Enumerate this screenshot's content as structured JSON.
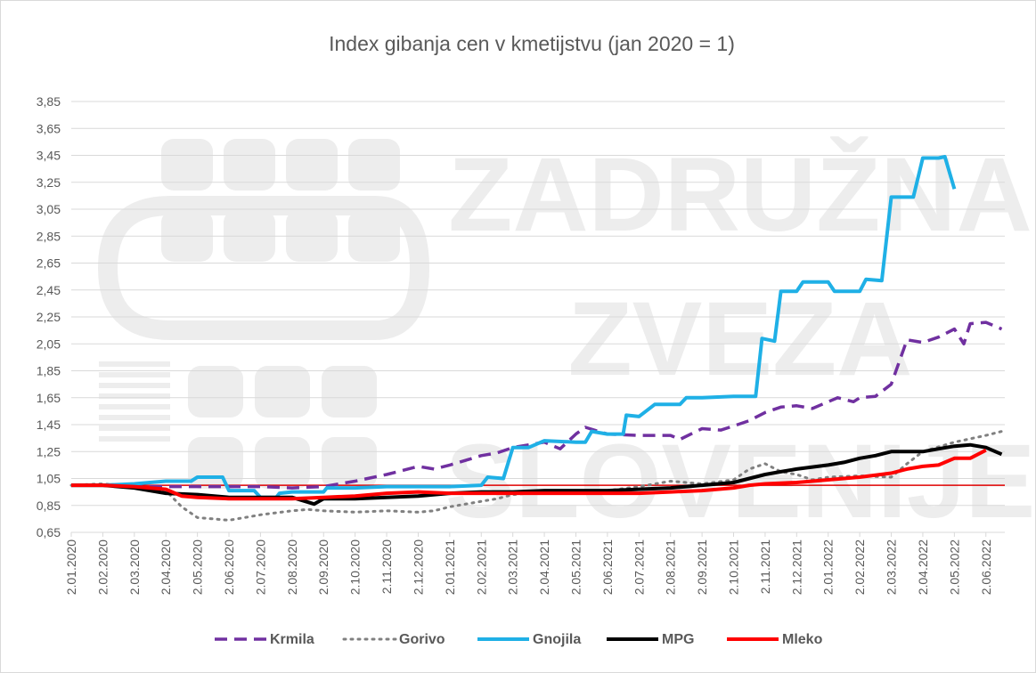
{
  "chart_data": {
    "type": "line",
    "title": "Index gibanja cen v kmetijstvu (jan 2020 = 1)",
    "xlabel": "",
    "ylabel": "",
    "ylim": [
      0.65,
      3.85
    ],
    "yticks": [
      "0,65",
      "0,85",
      "1,05",
      "1,25",
      "1,45",
      "1,65",
      "1,85",
      "2,05",
      "2,25",
      "2,45",
      "2,65",
      "2,85",
      "3,05",
      "3,25",
      "3,45",
      "3,65",
      "3,85"
    ],
    "ytick_values": [
      0.65,
      0.85,
      1.05,
      1.25,
      1.45,
      1.65,
      1.85,
      2.05,
      2.25,
      2.45,
      2.65,
      2.85,
      3.05,
      3.25,
      3.45,
      3.65,
      3.85
    ],
    "xticks": [
      "2.01.2020",
      "2.02.2020",
      "2.03.2020",
      "2.04.2020",
      "2.05.2020",
      "2.06.2020",
      "2.07.2020",
      "2.08.2020",
      "2.09.2020",
      "2.10.2020",
      "2.11.2020",
      "2.12.2020",
      "2.01.2021",
      "2.02.2021",
      "2.03.2021",
      "2.04.2021",
      "2.05.2021",
      "2.06.2021",
      "2.07.2021",
      "2.08.2021",
      "2.09.2021",
      "2.10.2021",
      "2.11.2021",
      "2.12.2021",
      "2.01.2022",
      "2.02.2022",
      "2.03.2022",
      "2.04.2022",
      "2.05.2022",
      "2.06.2022"
    ],
    "x_units": "months since 2.01.2020 (month 0 = 2.01.2020)",
    "x_range": [
      0,
      29.6
    ],
    "reference_line": {
      "y": 1.0,
      "color": "#e00000"
    },
    "grid": true,
    "legend_position": "bottom",
    "watermark": [
      "ZADRUŽNA",
      "ZVEZA",
      "SLOVENIJE"
    ],
    "series": [
      {
        "name": "Krmila",
        "color": "#7030a0",
        "style": "dashed",
        "points": [
          [
            0,
            1.0
          ],
          [
            1,
            1.0
          ],
          [
            2,
            0.99
          ],
          [
            3,
            0.99
          ],
          [
            4,
            0.99
          ],
          [
            5,
            0.99
          ],
          [
            6,
            0.99
          ],
          [
            7,
            0.98
          ],
          [
            8,
            0.99
          ],
          [
            9,
            1.03
          ],
          [
            10,
            1.08
          ],
          [
            11,
            1.14
          ],
          [
            11.5,
            1.12
          ],
          [
            12,
            1.15
          ],
          [
            13,
            1.22
          ],
          [
            13.5,
            1.24
          ],
          [
            14,
            1.28
          ],
          [
            15,
            1.32
          ],
          [
            15.5,
            1.27
          ],
          [
            16,
            1.38
          ],
          [
            16.3,
            1.43
          ],
          [
            17,
            1.38
          ],
          [
            18,
            1.37
          ],
          [
            19,
            1.37
          ],
          [
            19.3,
            1.34
          ],
          [
            20,
            1.42
          ],
          [
            20.6,
            1.41
          ],
          [
            21,
            1.44
          ],
          [
            21.5,
            1.48
          ],
          [
            22,
            1.54
          ],
          [
            22.5,
            1.58
          ],
          [
            23,
            1.59
          ],
          [
            23.5,
            1.57
          ],
          [
            24,
            1.62
          ],
          [
            24.3,
            1.65
          ],
          [
            24.8,
            1.62
          ],
          [
            25,
            1.65
          ],
          [
            25.5,
            1.66
          ],
          [
            26,
            1.75
          ],
          [
            26.5,
            2.08
          ],
          [
            27,
            2.06
          ],
          [
            27.5,
            2.1
          ],
          [
            28,
            2.16
          ],
          [
            28.3,
            2.05
          ],
          [
            28.5,
            2.2
          ],
          [
            29,
            2.21
          ],
          [
            29.5,
            2.16
          ]
        ]
      },
      {
        "name": "Gorivo",
        "color": "#808080",
        "style": "dotted",
        "points": [
          [
            0,
            1.0
          ],
          [
            1,
            1.01
          ],
          [
            2,
            0.99
          ],
          [
            3,
            0.96
          ],
          [
            3.5,
            0.84
          ],
          [
            4,
            0.76
          ],
          [
            5,
            0.74
          ],
          [
            6,
            0.78
          ],
          [
            7,
            0.81
          ],
          [
            7.5,
            0.82
          ],
          [
            8,
            0.81
          ],
          [
            9,
            0.8
          ],
          [
            10,
            0.81
          ],
          [
            11,
            0.8
          ],
          [
            11.5,
            0.81
          ],
          [
            12,
            0.84
          ],
          [
            13,
            0.88
          ],
          [
            13.5,
            0.9
          ],
          [
            14,
            0.93
          ],
          [
            15,
            0.95
          ],
          [
            16,
            0.95
          ],
          [
            17,
            0.96
          ],
          [
            18,
            0.99
          ],
          [
            19,
            1.03
          ],
          [
            20,
            1.01
          ],
          [
            21,
            1.04
          ],
          [
            21.5,
            1.12
          ],
          [
            22,
            1.16
          ],
          [
            22.5,
            1.1
          ],
          [
            23,
            1.08
          ],
          [
            23.5,
            1.04
          ],
          [
            24,
            1.06
          ],
          [
            25,
            1.07
          ],
          [
            26,
            1.06
          ],
          [
            26.5,
            1.16
          ],
          [
            27,
            1.25
          ],
          [
            28,
            1.32
          ],
          [
            29,
            1.37
          ],
          [
            29.5,
            1.4
          ]
        ]
      },
      {
        "name": "Gnojila",
        "color": "#1fb0e6",
        "style": "solid",
        "points": [
          [
            0,
            1.0
          ],
          [
            1,
            1.0
          ],
          [
            2,
            1.01
          ],
          [
            3,
            1.03
          ],
          [
            3.8,
            1.03
          ],
          [
            4,
            1.06
          ],
          [
            4.8,
            1.06
          ],
          [
            5,
            0.96
          ],
          [
            5.8,
            0.96
          ],
          [
            6,
            0.91
          ],
          [
            6.5,
            0.91
          ],
          [
            6.6,
            0.94
          ],
          [
            7,
            0.95
          ],
          [
            8,
            0.95
          ],
          [
            8.1,
            0.98
          ],
          [
            9,
            0.98
          ],
          [
            10,
            0.99
          ],
          [
            11,
            0.99
          ],
          [
            12,
            0.99
          ],
          [
            13,
            1.0
          ],
          [
            13.2,
            1.06
          ],
          [
            13.7,
            1.05
          ],
          [
            14,
            1.28
          ],
          [
            14.5,
            1.28
          ],
          [
            15,
            1.33
          ],
          [
            16,
            1.32
          ],
          [
            16.3,
            1.32
          ],
          [
            16.5,
            1.4
          ],
          [
            17,
            1.38
          ],
          [
            17.5,
            1.38
          ],
          [
            17.6,
            1.52
          ],
          [
            18,
            1.51
          ],
          [
            18.5,
            1.6
          ],
          [
            19.3,
            1.6
          ],
          [
            19.5,
            1.65
          ],
          [
            20,
            1.65
          ],
          [
            21,
            1.66
          ],
          [
            21.7,
            1.66
          ],
          [
            21.9,
            2.09
          ],
          [
            22.3,
            2.07
          ],
          [
            22.5,
            2.44
          ],
          [
            23,
            2.44
          ],
          [
            23.2,
            2.51
          ],
          [
            24,
            2.51
          ],
          [
            24.2,
            2.44
          ],
          [
            25,
            2.44
          ],
          [
            25.2,
            2.53
          ],
          [
            25.7,
            2.52
          ],
          [
            26,
            3.14
          ],
          [
            26.7,
            3.14
          ],
          [
            27,
            3.43
          ],
          [
            27.5,
            3.43
          ],
          [
            27.7,
            3.44
          ],
          [
            28,
            3.2
          ]
        ]
      },
      {
        "name": "MPG",
        "color": "#000000",
        "style": "solid",
        "points": [
          [
            0,
            1.0
          ],
          [
            1,
            1.0
          ],
          [
            2,
            0.98
          ],
          [
            3,
            0.94
          ],
          [
            4,
            0.93
          ],
          [
            5,
            0.91
          ],
          [
            6,
            0.91
          ],
          [
            7,
            0.91
          ],
          [
            7.7,
            0.86
          ],
          [
            8,
            0.9
          ],
          [
            9,
            0.9
          ],
          [
            10,
            0.91
          ],
          [
            11,
            0.92
          ],
          [
            12,
            0.94
          ],
          [
            13,
            0.95
          ],
          [
            14,
            0.95
          ],
          [
            15,
            0.96
          ],
          [
            16,
            0.96
          ],
          [
            17,
            0.96
          ],
          [
            18,
            0.97
          ],
          [
            19,
            0.98
          ],
          [
            20,
            1.0
          ],
          [
            21,
            1.02
          ],
          [
            21.5,
            1.05
          ],
          [
            22,
            1.08
          ],
          [
            22.5,
            1.1
          ],
          [
            23,
            1.12
          ],
          [
            24,
            1.15
          ],
          [
            24.5,
            1.17
          ],
          [
            25,
            1.2
          ],
          [
            25.5,
            1.22
          ],
          [
            26,
            1.25
          ],
          [
            27,
            1.25
          ],
          [
            27.5,
            1.27
          ],
          [
            28,
            1.29
          ],
          [
            28.5,
            1.3
          ],
          [
            29,
            1.28
          ],
          [
            29.5,
            1.23
          ]
        ]
      },
      {
        "name": "Mleko",
        "color": "#ff0000",
        "style": "solid",
        "points": [
          [
            0,
            1.0
          ],
          [
            1,
            1.0
          ],
          [
            2,
            0.99
          ],
          [
            3,
            0.97
          ],
          [
            3.5,
            0.92
          ],
          [
            4,
            0.91
          ],
          [
            5,
            0.9
          ],
          [
            6,
            0.9
          ],
          [
            7,
            0.9
          ],
          [
            8,
            0.91
          ],
          [
            9,
            0.92
          ],
          [
            10,
            0.94
          ],
          [
            11,
            0.95
          ],
          [
            12,
            0.94
          ],
          [
            13,
            0.94
          ],
          [
            14,
            0.94
          ],
          [
            15,
            0.94
          ],
          [
            16,
            0.94
          ],
          [
            17,
            0.94
          ],
          [
            18,
            0.94
          ],
          [
            19,
            0.95
          ],
          [
            20,
            0.96
          ],
          [
            21,
            0.98
          ],
          [
            21.5,
            1.0
          ],
          [
            22,
            1.01
          ],
          [
            23,
            1.02
          ],
          [
            24,
            1.04
          ],
          [
            25,
            1.06
          ],
          [
            26,
            1.09
          ],
          [
            26.5,
            1.12
          ],
          [
            27,
            1.14
          ],
          [
            27.5,
            1.15
          ],
          [
            28,
            1.2
          ],
          [
            28.5,
            1.2
          ],
          [
            29,
            1.26
          ]
        ]
      }
    ]
  }
}
